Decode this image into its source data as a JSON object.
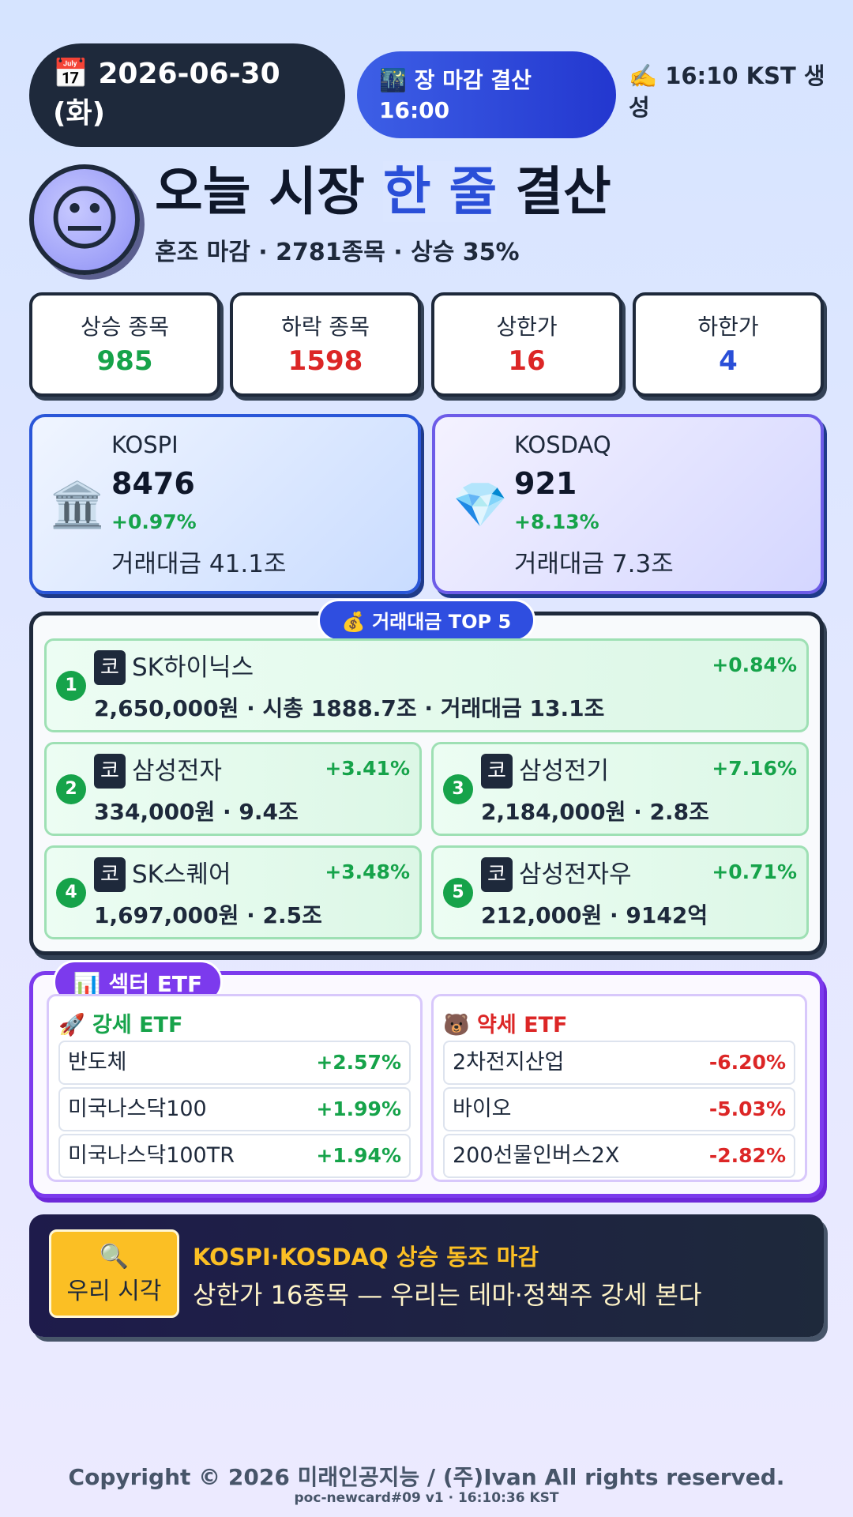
{
  "header": {
    "date": "📅 2026-06-30 (화)",
    "session": "🌃 장 마감 결산 16:00",
    "generated": "✍️ 16:10 KST 생성"
  },
  "hero": {
    "mood_icon": "😐",
    "title_prefix": "오늘 시장 ",
    "title_highlight": "한 줄",
    "title_suffix": " 결산",
    "subtitle": "혼조 마감 · 2781종목 · 상승 35%"
  },
  "stats": [
    {
      "label": "상승 종목",
      "value": "985"
    },
    {
      "label": "하락 종목",
      "value": "1598"
    },
    {
      "label": "상한가",
      "value": "16"
    },
    {
      "label": "하한가",
      "value": "4"
    }
  ],
  "indices": [
    {
      "icon": "🏛️",
      "name": "KOSPI",
      "value": "8476",
      "change": "+0.97%",
      "turnover": "거래대금 41.1조"
    },
    {
      "icon": "💎",
      "name": "KOSDAQ",
      "value": "921",
      "change": "+8.13%",
      "turnover": "거래대금 7.3조"
    }
  ],
  "top5": {
    "title": "💰 거래대금 TOP 5",
    "items": [
      {
        "rank": "1",
        "market": "코",
        "name": "SK하이닉스",
        "change": "+0.84%",
        "detail": "2,650,000원 · 시총 1888.7조 · 거래대금 13.1조"
      },
      {
        "rank": "2",
        "market": "코",
        "name": "삼성전자",
        "change": "+3.41%",
        "detail": "334,000원 · 9.4조"
      },
      {
        "rank": "3",
        "market": "코",
        "name": "삼성전기",
        "change": "+7.16%",
        "detail": "2,184,000원 · 2.8조"
      },
      {
        "rank": "4",
        "market": "코",
        "name": "SK스퀘어",
        "change": "+3.48%",
        "detail": "1,697,000원 · 2.5조"
      },
      {
        "rank": "5",
        "market": "코",
        "name": "삼성전자우",
        "change": "+0.71%",
        "detail": "212,000원 · 9142억"
      }
    ]
  },
  "etf": {
    "title": "📊 섹터 ETF",
    "strong": {
      "title": "🚀 강세 ETF",
      "items": [
        {
          "name": "반도체",
          "change": "+2.57%"
        },
        {
          "name": "미국나스닥100",
          "change": "+1.99%"
        },
        {
          "name": "미국나스닥100TR",
          "change": "+1.94%"
        }
      ]
    },
    "weak": {
      "title": "🐻 약세 ETF",
      "items": [
        {
          "name": "2차전지산업",
          "change": "-6.20%"
        },
        {
          "name": "바이오",
          "change": "-5.03%"
        },
        {
          "name": "200선물인버스2X",
          "change": "-2.82%"
        }
      ]
    }
  },
  "view": {
    "badge_icon": "🔍",
    "badge_label": "우리 시각",
    "headline": "KOSPI·KOSDAQ 상승 동조 마감",
    "body": "상한가 16종목 — 우리는 테마·정책주 강세 본다"
  },
  "footer": {
    "copyright": "Copyright © 2026 미래인공지능 / (주)Ivan All rights reserved.",
    "build": "poc-newcard#09 v1 · 16:10:36 KST"
  }
}
